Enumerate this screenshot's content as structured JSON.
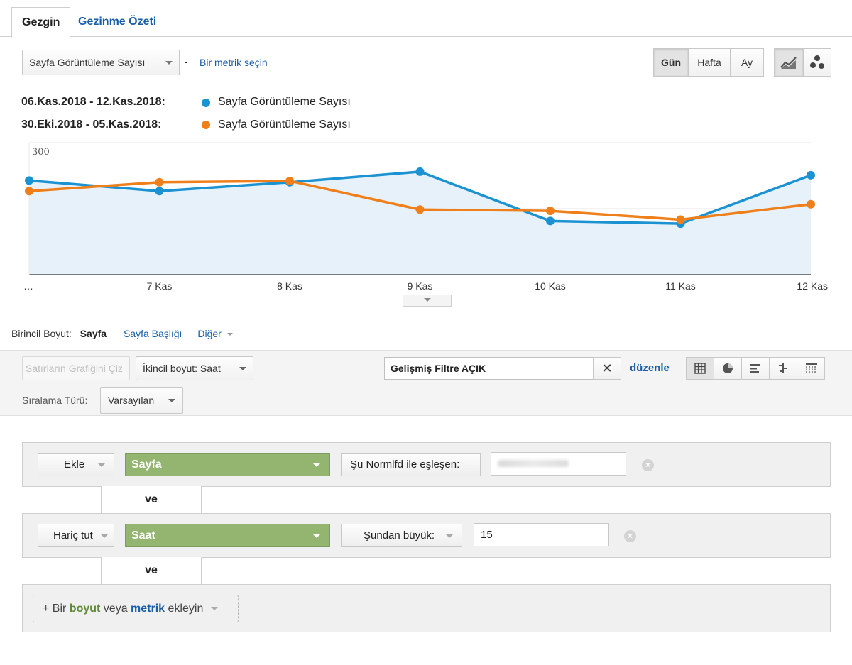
{
  "tabs": [
    {
      "label": "Gezgin"
    },
    {
      "label": "Gezinme Özeti"
    }
  ],
  "controls": {
    "metric_select": "Sayfa Görüntüleme Sayısı",
    "separator": "-",
    "second_metric_link": "Bir metrik seçin",
    "periods": [
      "Gün",
      "Hafta",
      "Ay"
    ],
    "active_period": "Gün",
    "chart_icons": [
      "line-chart-icon",
      "motion-chart-icon"
    ]
  },
  "legend": [
    {
      "date": "06.Kas.2018 - 12.Kas.2018:",
      "metric": "Sayfa Görüntüleme Sayısı",
      "color": "#1b92d1"
    },
    {
      "date": "30.Eki.2018 - 05.Kas.2018:",
      "metric": "Sayfa Görüntüleme Sayısı",
      "color": "#ef7f1a"
    }
  ],
  "chart_data": {
    "type": "line",
    "x": [
      "…",
      "7 Kas",
      "8 Kas",
      "9 Kas",
      "10 Kas",
      "11 Kas",
      "12 Kas"
    ],
    "y_ticks": [
      "300",
      "150"
    ],
    "ylim": [
      0,
      300
    ],
    "series": [
      {
        "name": "06.Kas.2018 - 12.Kas.2018",
        "color": "#1b92d1",
        "values": [
          214,
          190,
          210,
          234,
          122,
          116,
          226
        ]
      },
      {
        "name": "30.Eki.2018 - 05.Kas.2018",
        "color": "#ef7f1a",
        "values": [
          190,
          210,
          213,
          148,
          145,
          125,
          160
        ]
      }
    ],
    "grid": true
  },
  "dimension": {
    "label": "Birincil Boyut:",
    "active": "Sayfa",
    "option1": "Sayfa Başlığı",
    "option2": "Diğer"
  },
  "toolbar": {
    "plot_rows": "Satırların Grafiğini Çiz",
    "secondary_dim": "İkincil boyut: Saat",
    "sort_label": "Sıralama Türü:",
    "sort_value": "Varsayılan",
    "filter_value": "Gelişmiş Filtre AÇIK",
    "edit_link": "düzenle",
    "view_icons": [
      "table-view-icon",
      "pie-view-icon",
      "bar-view-icon",
      "comparison-view-icon",
      "pivot-view-icon"
    ]
  },
  "filters": [
    {
      "mode": "Ekle",
      "dimension": "Sayfa",
      "operator": "Şu Normlfd ile eşleşen:",
      "value": ""
    },
    {
      "mode": "Hariç tut",
      "dimension": "Saat",
      "operator": "Şundan büyük:",
      "value": "15"
    }
  ],
  "connector": "ve",
  "add_condition": {
    "prefix": "+ Bir",
    "boyut": "boyut",
    "middle": "veya",
    "metrik": "metrik",
    "suffix": "ekleyin"
  }
}
